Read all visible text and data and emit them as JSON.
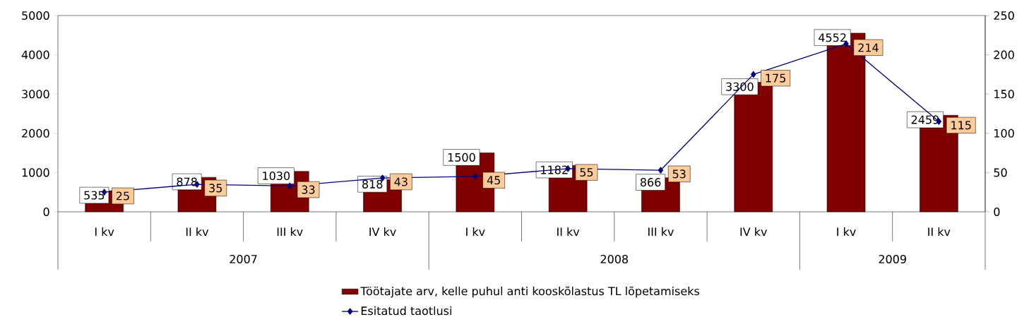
{
  "chart_data": {
    "type": "bar",
    "categories": [
      "I kv",
      "II kv",
      "III kv",
      "IV kv",
      "I kv",
      "II kv",
      "III kv",
      "IV kv",
      "I kv",
      "II kv"
    ],
    "series": [
      {
        "name": "Töötajate arv, kelle puhul anti kooskõlastus TL lõpetamiseks",
        "type": "bar",
        "color": "#800000",
        "values": [
          535,
          878,
          1030,
          818,
          1500,
          1182,
          866,
          3300,
          4552,
          2459
        ]
      },
      {
        "name": "Esitatud taotlusi",
        "type": "line",
        "axis": "y2",
        "color": "#000080",
        "marker": "diamond",
        "values": [
          25,
          35,
          33,
          43,
          45,
          55,
          53,
          175,
          214,
          115
        ]
      }
    ],
    "ylim": [
      0,
      5000
    ],
    "yticks": [
      0,
      1000,
      2000,
      3000,
      4000,
      5000
    ],
    "y2lim": [
      0,
      250
    ],
    "y2ticks": [
      0,
      50,
      100,
      150,
      200,
      250
    ],
    "annotations": [
      "2007",
      "2008",
      "2009"
    ],
    "data_labels": true,
    "legend": "bottom",
    "grid": false
  }
}
